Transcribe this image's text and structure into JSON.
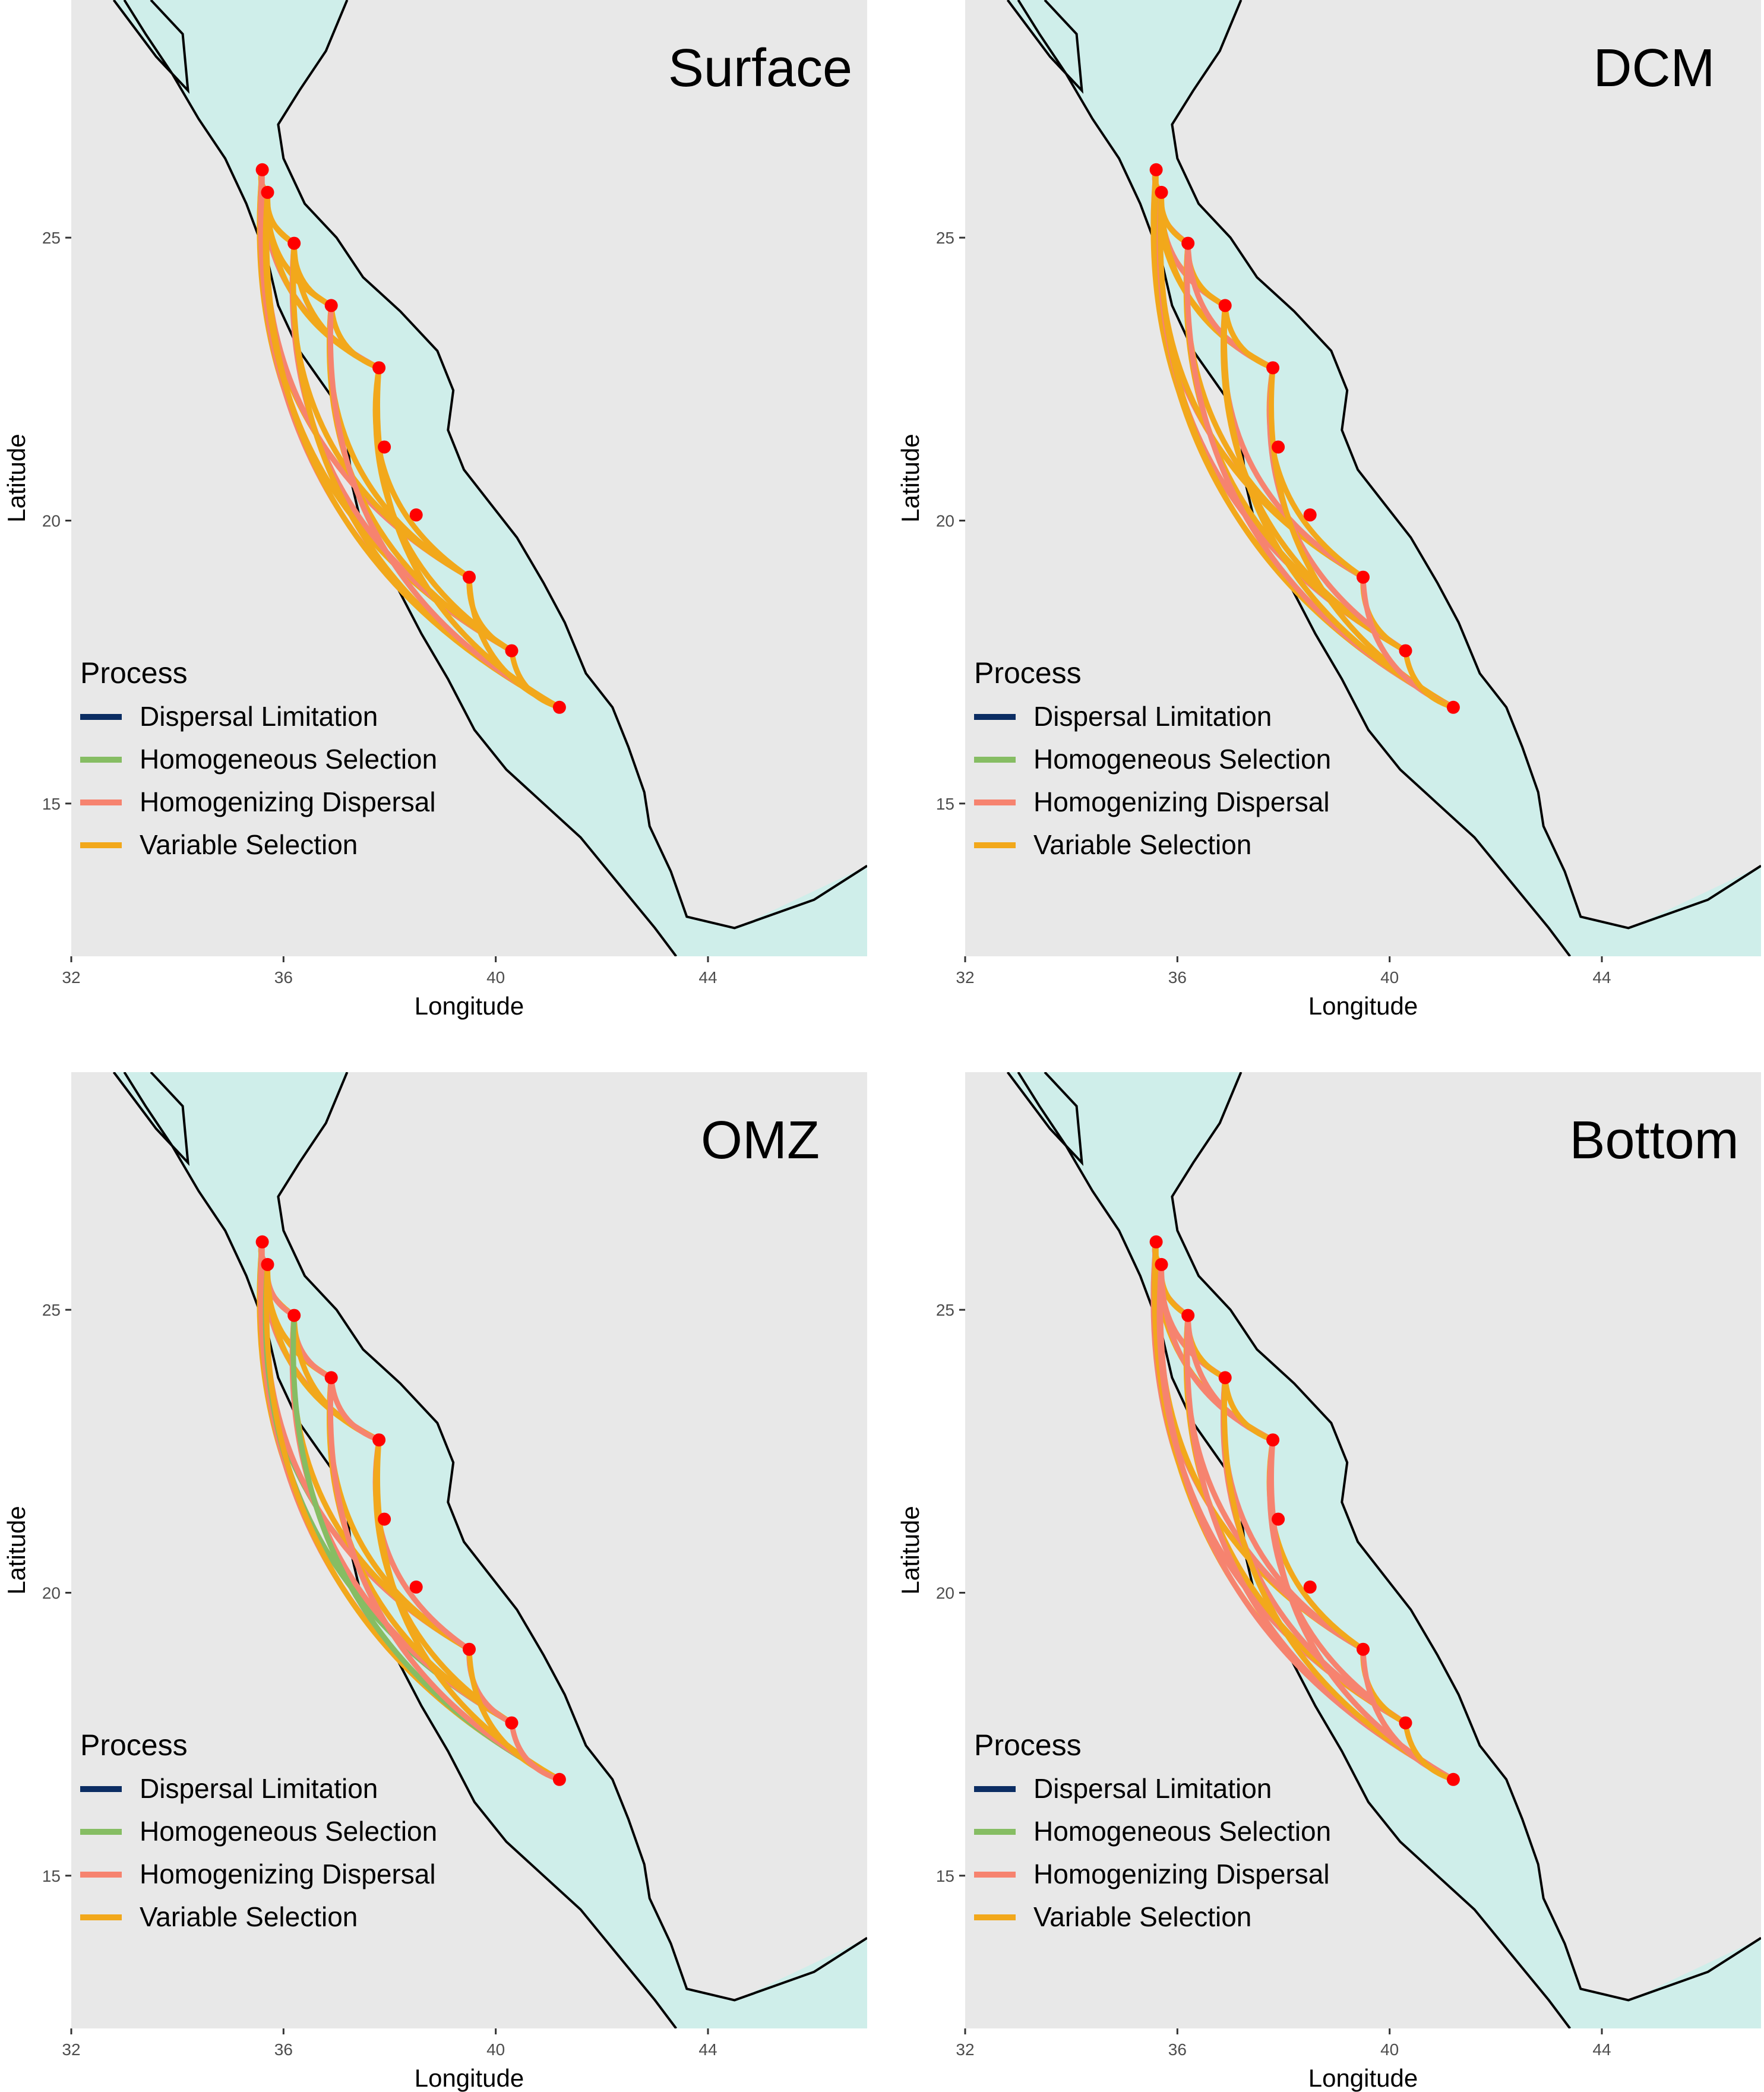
{
  "panels": [
    {
      "key": "surface",
      "title": "Surface"
    },
    {
      "key": "dcm",
      "title": "DCM"
    },
    {
      "key": "omz",
      "title": "OMZ"
    },
    {
      "key": "bottom",
      "title": "Bottom"
    }
  ],
  "axes": {
    "xlabel": "Longitude",
    "ylabel": "Latitude",
    "xlim": [
      32,
      47
    ],
    "ylim": [
      12.3,
      29.2
    ],
    "xticks": [
      32,
      36,
      40,
      44
    ],
    "yticks": [
      15,
      20,
      25
    ]
  },
  "legend": {
    "title": "Process",
    "position": "bottom-left",
    "items": [
      {
        "label": "Dispersal Limitation",
        "color": "#0b2d63"
      },
      {
        "label": "Homogeneous Selection",
        "color": "#86bd63"
      },
      {
        "label": "Homogenizing Dispersal",
        "color": "#f6836f"
      },
      {
        "label": "Variable Selection",
        "color": "#f2a81b"
      }
    ]
  },
  "colors": {
    "land": "#e8e8e8",
    "sea": "#cfeeea",
    "coast": "#000000",
    "station": "#ff0000"
  },
  "stations": [
    {
      "lon": 35.6,
      "lat": 26.2
    },
    {
      "lon": 35.7,
      "lat": 25.8
    },
    {
      "lon": 36.2,
      "lat": 24.9
    },
    {
      "lon": 36.9,
      "lat": 23.8
    },
    {
      "lon": 37.8,
      "lat": 22.7
    },
    {
      "lon": 37.9,
      "lat": 21.3
    },
    {
      "lon": 38.5,
      "lat": 20.1
    },
    {
      "lon": 39.5,
      "lat": 19.0
    },
    {
      "lon": 40.3,
      "lat": 17.7
    },
    {
      "lon": 41.2,
      "lat": 16.7
    }
  ],
  "connected_stations": [
    0,
    1,
    2,
    3,
    4,
    7,
    8,
    9
  ]
}
